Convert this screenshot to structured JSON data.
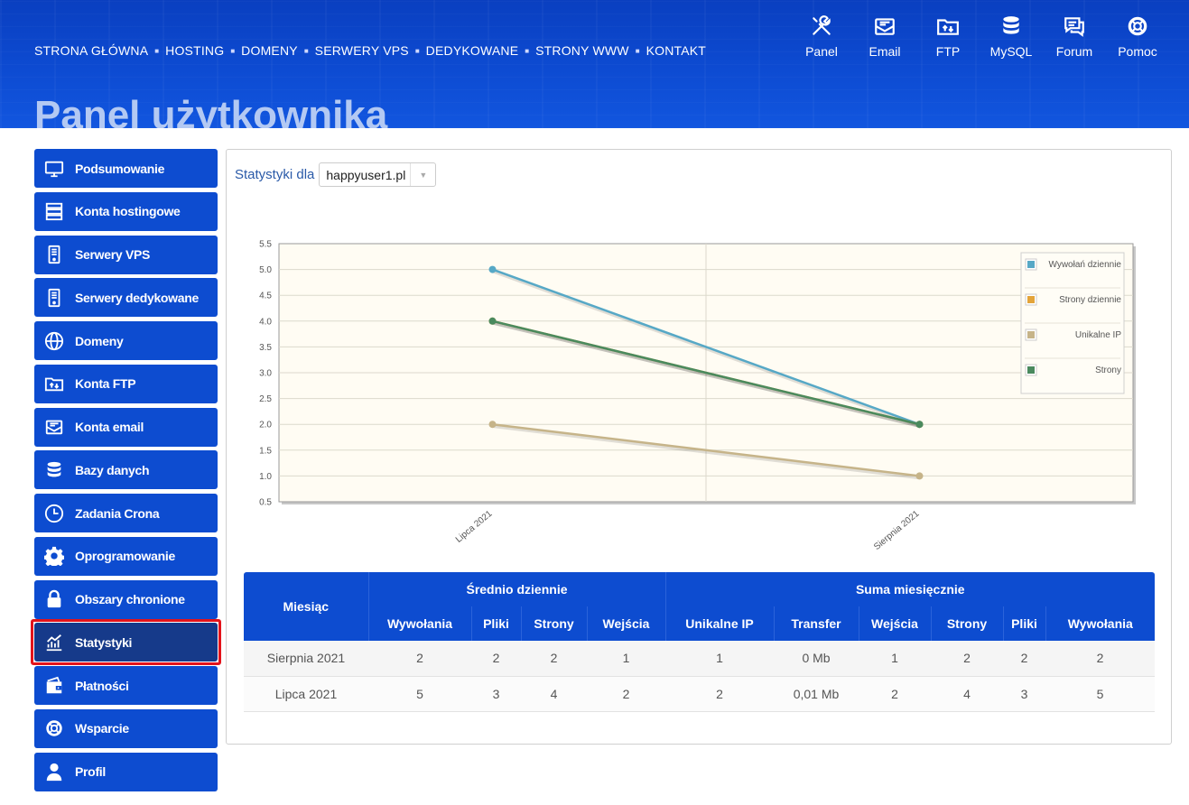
{
  "nav": {
    "items": [
      "STRONA GŁÓWNA",
      "HOSTING",
      "DOMENY",
      "SERWERY VPS",
      "DEDYKOWANE",
      "STRONY WWW",
      "KONTAKT"
    ],
    "separator": "■"
  },
  "header_icons": [
    {
      "label": "Panel",
      "icon": "tools-icon"
    },
    {
      "label": "Email",
      "icon": "email-icon"
    },
    {
      "label": "FTP",
      "icon": "ftp-folder-icon"
    },
    {
      "label": "MySQL",
      "icon": "database-icon"
    },
    {
      "label": "Forum",
      "icon": "forum-icon"
    },
    {
      "label": "Pomoc",
      "icon": "lifebuoy-icon"
    }
  ],
  "page_title": "Panel użytkownika",
  "sidebar": {
    "items": [
      {
        "label": "Podsumowanie",
        "icon": "monitor-icon"
      },
      {
        "label": "Konta hostingowe",
        "icon": "server-rack-icon"
      },
      {
        "label": "Serwery VPS",
        "icon": "server-tower-icon"
      },
      {
        "label": "Serwery dedykowane",
        "icon": "server-tower-icon"
      },
      {
        "label": "Domeny",
        "icon": "globe-www-icon"
      },
      {
        "label": "Konta FTP",
        "icon": "ftp-folder-icon"
      },
      {
        "label": "Konta email",
        "icon": "email-icon"
      },
      {
        "label": "Bazy danych",
        "icon": "database-icon"
      },
      {
        "label": "Zadania Crona",
        "icon": "clock-icon"
      },
      {
        "label": "Oprogramowanie",
        "icon": "gear-icon"
      },
      {
        "label": "Obszary chronione",
        "icon": "lock-icon"
      },
      {
        "label": "Statystyki",
        "icon": "chart-icon",
        "active": true
      },
      {
        "label": "Płatności",
        "icon": "wallet-icon"
      },
      {
        "label": "Wsparcie",
        "icon": "lifebuoy-icon"
      },
      {
        "label": "Profil",
        "icon": "user-icon"
      }
    ]
  },
  "stats": {
    "label": "Statystyki dla",
    "selected_domain": "happyuser1.pl"
  },
  "chart_data": {
    "type": "line",
    "categories": [
      "Lipca 2021",
      "Sierpnia 2021"
    ],
    "ylim": [
      0.5,
      5.5
    ],
    "yticks": [
      "0.5",
      "1.0",
      "1.5",
      "2.0",
      "2.5",
      "3.0",
      "3.5",
      "4.0",
      "4.5",
      "5.0",
      "5.5"
    ],
    "grid": true,
    "legend_position": "top-right",
    "series": [
      {
        "name": "Wywołań dziennie",
        "values": [
          5,
          2
        ],
        "color": "#56a8c6"
      },
      {
        "name": "Strony dziennie",
        "values": [
          4,
          2
        ],
        "color": "#e3a43a"
      },
      {
        "name": "Unikalne IP",
        "values": [
          2,
          1
        ],
        "color": "#c6b489"
      },
      {
        "name": "Strony",
        "values": [
          4,
          2
        ],
        "color": "#4a8a5e"
      }
    ]
  },
  "table": {
    "col_month": "Miesiąc",
    "group_daily": "Średnio dziennie",
    "group_monthly": "Suma miesięcznie",
    "daily_headers": [
      "Wywołania",
      "Pliki",
      "Strony",
      "Wejścia"
    ],
    "monthly_headers": [
      "Unikalne IP",
      "Transfer",
      "Wejścia",
      "Strony",
      "Pliki",
      "Wywołania"
    ],
    "rows": [
      [
        "Sierpnia 2021",
        "2",
        "2",
        "2",
        "1",
        "1",
        "0 Mb",
        "1",
        "2",
        "2",
        "2"
      ],
      [
        "Lipca 2021",
        "5",
        "3",
        "4",
        "2",
        "2",
        "0,01 Mb",
        "2",
        "4",
        "3",
        "5"
      ]
    ]
  },
  "colors": {
    "brand_blue": "#0d4cd0",
    "active_item": "#163a8a",
    "highlight_border": "#e3131b",
    "chart_bg": "#fffcf3"
  }
}
